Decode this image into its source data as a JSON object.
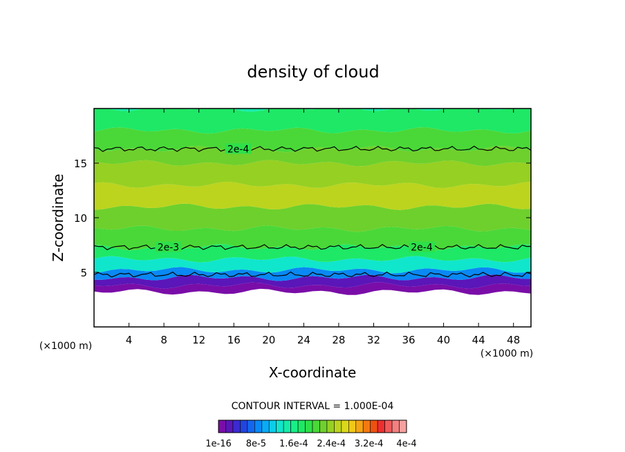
{
  "chart_data": {
    "type": "heatmap",
    "title": "density of cloud",
    "xlabel": "X-coordinate",
    "ylabel": "Z-coordinate",
    "x_unit": "(×1000 m)",
    "z_unit": "(×1000 m)",
    "xlim": [
      0,
      50
    ],
    "ylim": [
      0,
      20
    ],
    "x_ticks": [
      4,
      8,
      12,
      16,
      20,
      24,
      28,
      32,
      36,
      40,
      44,
      48
    ],
    "y_ticks": [
      5,
      10,
      15
    ],
    "contour_interval_text": "CONTOUR INTERVAL = 1.000E-04",
    "contour_labels": [
      "2e-4",
      "2e-3",
      "2e-4",
      "2e-4"
    ],
    "colorbar_tick_labels": [
      "1e-16",
      "8e-5",
      "1.6e-4",
      "2.4e-4",
      "3.2e-4",
      "4e-4"
    ],
    "colorbar_colors": [
      "#7a0da8",
      "#5a16b8",
      "#3a2ad0",
      "#2244e0",
      "#1466ee",
      "#0a88f4",
      "#0aaaf6",
      "#0ccde8",
      "#10e6cc",
      "#14ecaa",
      "#18ee86",
      "#1ee866",
      "#2ee04a",
      "#4ad838",
      "#6ed02c",
      "#96d022",
      "#bcd41e",
      "#dcd81a",
      "#f0c818",
      "#f4a414",
      "#f47a12",
      "#f05010",
      "#ee2e2e",
      "#f05a5a",
      "#f48080",
      "#f8a0a0"
    ],
    "profile": [
      {
        "z": 3.2,
        "value": 1e-05
      },
      {
        "z": 3.8,
        "value": 3e-05
      },
      {
        "z": 4.5,
        "value": 8e-05
      },
      {
        "z": 5.2,
        "value": 0.00013
      },
      {
        "z": 6.2,
        "value": 0.00017
      },
      {
        "z": 7.3,
        "value": 0.0002
      },
      {
        "z": 9.0,
        "value": 0.00023
      },
      {
        "z": 11.0,
        "value": 0.00025
      },
      {
        "z": 13.0,
        "value": 0.00024
      },
      {
        "z": 15.0,
        "value": 0.00022
      },
      {
        "z": 16.3,
        "value": 0.0002
      },
      {
        "z": 18.0,
        "value": 0.00017
      },
      {
        "z": 20.0,
        "value": 0.00015
      }
    ]
  }
}
